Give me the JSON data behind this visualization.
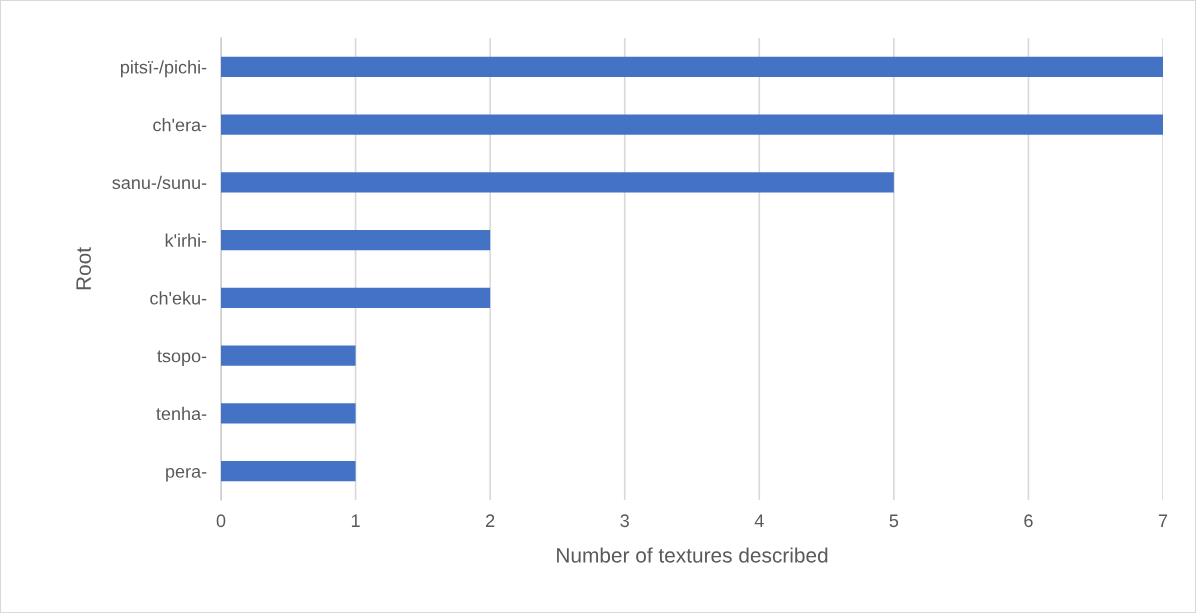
{
  "chart_data": {
    "type": "bar",
    "orientation": "horizontal",
    "categories": [
      "pitsï-/pichi-",
      "ch'era-",
      "sanu-/sunu-",
      "k'irhi-",
      "ch'eku-",
      "tsopo-",
      "tenha-",
      "pera-"
    ],
    "values": [
      7,
      7,
      5,
      2,
      2,
      1,
      1,
      1
    ],
    "color": "#4472c4",
    "xlabel": "Number of textures described",
    "ylabel": "Root",
    "xlim": [
      0,
      7
    ],
    "xticks": [
      0,
      1,
      2,
      3,
      4,
      5,
      6,
      7
    ],
    "grid": "x",
    "legend": false
  }
}
